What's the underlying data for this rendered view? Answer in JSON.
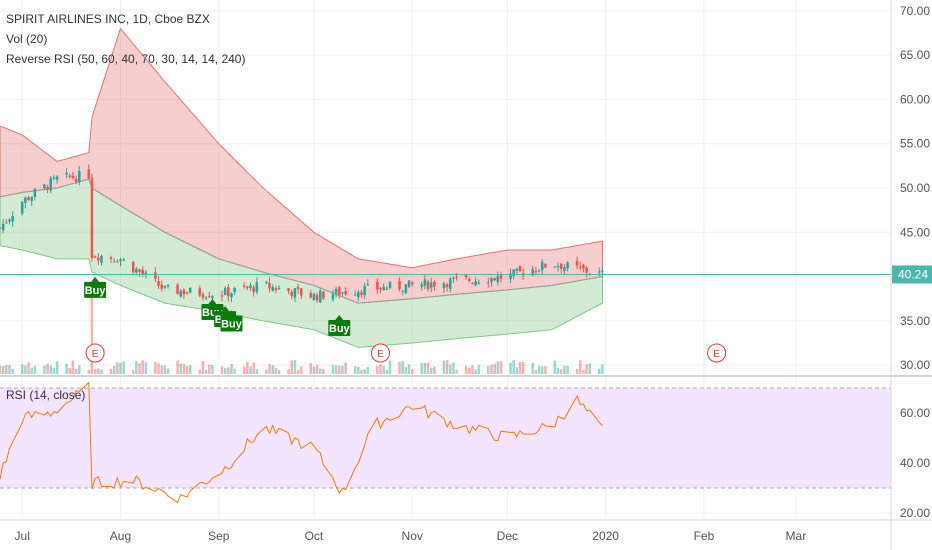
{
  "legend": {
    "title": "SPIRIT AIRLINES INC, 1D, Cboe BZX",
    "vol": "Vol (20)",
    "reverse_rsi": "Reverse RSI (50, 60, 40, 70, 30, 14, 14, 240)",
    "rsi": "RSI (14, close)"
  },
  "colors": {
    "up": "#26a69a",
    "down": "#ef5350",
    "upper_band": "#e57373",
    "lower_band": "#81c784",
    "mid_line": "#9e9e9e",
    "rsi_line": "#f57c00",
    "rsi_zone": "#f3e5ff",
    "price_line": "#4db6ac",
    "signal": "#0a7a0a",
    "earnings": "#e53935"
  },
  "chart_data": [
    {
      "type": "candlestick",
      "name": "price",
      "ylim": [
        29,
        71
      ],
      "y_ticks": [
        "30.00",
        "35.00",
        "40.00",
        "45.00",
        "50.00",
        "55.00",
        "60.00",
        "65.00",
        "70.00"
      ],
      "x_ticks": [
        "Jul",
        "Aug",
        "Sep",
        "Oct",
        "Nov",
        "Dec",
        "2020",
        "Feb",
        "Mar"
      ],
      "last_price": "40.24",
      "last_value": 40.24,
      "anchors": {
        "x": [
          "2019-06-24",
          "2019-07-01",
          "2019-07-12",
          "2019-07-22",
          "2019-07-23",
          "2019-08-01",
          "2019-08-15",
          "2019-09-01",
          "2019-09-15",
          "2019-10-01",
          "2019-10-15",
          "2019-11-01",
          "2019-11-15",
          "2019-12-01",
          "2019-12-15",
          "2019-12-31"
        ],
        "close": [
          45.5,
          48.5,
          51.0,
          51.5,
          42.5,
          42.0,
          38.5,
          38.0,
          39.0,
          37.8,
          38.5,
          39.0,
          39.5,
          40.0,
          41.5,
          40.24
        ],
        "upper": [
          57,
          56,
          53,
          54,
          58,
          68,
          62,
          55,
          50,
          45,
          42,
          41,
          42,
          43,
          43,
          44
        ],
        "lower": [
          43.5,
          43,
          42,
          42,
          40.5,
          39,
          37,
          36,
          35,
          34,
          32,
          32.5,
          33,
          33.5,
          34,
          37
        ],
        "mid": [
          49,
          49.5,
          50,
          51,
          50,
          48,
          45,
          42,
          40.5,
          39,
          37,
          37.5,
          38,
          38.5,
          39,
          40
        ]
      },
      "signals": [
        {
          "label": "Buy",
          "date": "2019-07-24",
          "price": 38.5
        },
        {
          "label": "Buy",
          "date": "2019-08-30",
          "price": 36.0
        },
        {
          "label": "Buy",
          "date": "2019-09-03",
          "price": 35.2
        },
        {
          "label": "Buy",
          "date": "2019-09-05",
          "price": 34.7
        },
        {
          "label": "Buy",
          "date": "2019-10-09",
          "price": 34.2
        }
      ],
      "earnings": [
        {
          "label": "E",
          "date": "2019-07-24"
        },
        {
          "label": "E",
          "date": "2019-10-22"
        },
        {
          "label": "E",
          "date": "2020-02-05"
        }
      ]
    },
    {
      "type": "line",
      "name": "RSI",
      "ylim": [
        18,
        74
      ],
      "y_ticks": [
        "20.00",
        "40.00",
        "60.00"
      ],
      "bands": [
        30,
        70
      ],
      "anchors": {
        "x": [
          "2019-06-24",
          "2019-07-01",
          "2019-07-10",
          "2019-07-22",
          "2019-07-23",
          "2019-08-05",
          "2019-08-20",
          "2019-09-03",
          "2019-09-15",
          "2019-10-01",
          "2019-10-10",
          "2019-10-20",
          "2019-11-01",
          "2019-11-15",
          "2019-12-01",
          "2019-12-15",
          "2019-12-23",
          "2019-12-31"
        ],
        "y": [
          35,
          58,
          60,
          70,
          32,
          33,
          26,
          38,
          54,
          46,
          28,
          55,
          63,
          55,
          50,
          55,
          65,
          53
        ]
      }
    }
  ]
}
